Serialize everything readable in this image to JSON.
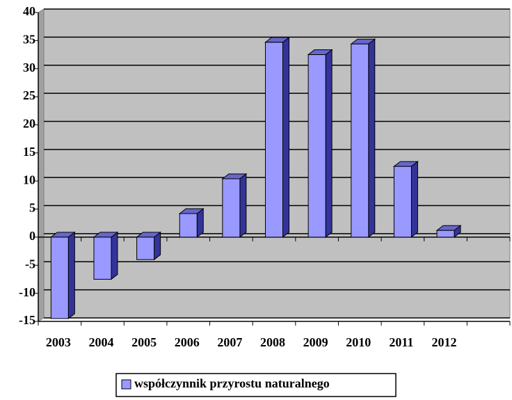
{
  "chart_data": {
    "type": "bar",
    "categories": [
      "2003",
      "2004",
      "2005",
      "2006",
      "2007",
      "2008",
      "2009",
      "2010",
      "2011",
      "2012",
      null
    ],
    "series": [
      {
        "name": "współczynnik przyrostu naturalnego",
        "color": "#9999ff",
        "values": [
          -14.5,
          -7.5,
          -4,
          4.2,
          10.4,
          34.7,
          32.5,
          34.4,
          12.6,
          1.2,
          null
        ]
      }
    ],
    "ylim": [
      -15,
      40
    ],
    "yticks": [
      -15,
      -10,
      -5,
      0,
      5,
      10,
      15,
      20,
      25,
      30,
      35,
      40
    ],
    "grid": true,
    "legend": "bottom"
  }
}
